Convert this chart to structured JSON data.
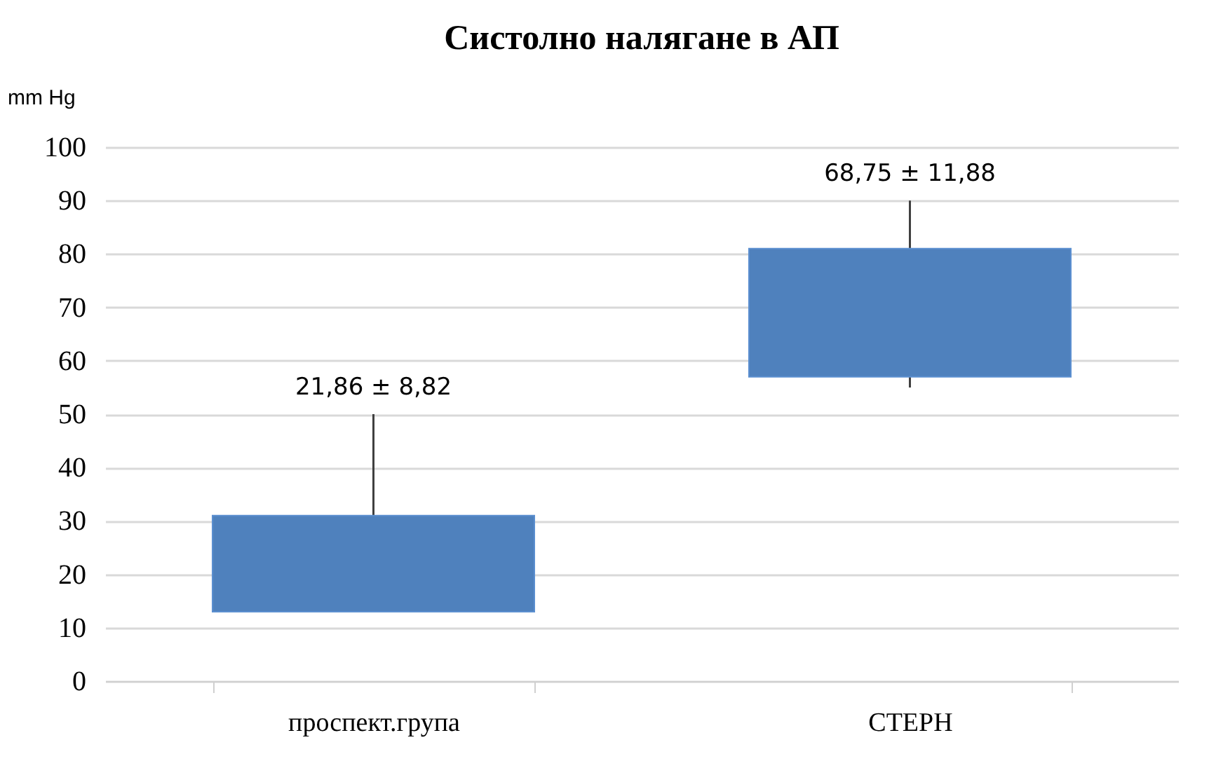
{
  "chart_data": {
    "type": "bar",
    "title": "Систолно налягане в АП",
    "ylabel": "mm Hg",
    "categories": [
      "проспект.група",
      "СТЕРН"
    ],
    "series": [
      {
        "color": "#4f81bd",
        "base": [
          13,
          57
        ],
        "values": [
          18,
          24
        ],
        "errors": [
          [
            13,
            50
          ],
          [
            55,
            90
          ]
        ]
      }
    ],
    "annotations": [
      "21,86 ± 8,82",
      "68,75 ± 11,88"
    ],
    "ylim": [
      0,
      100
    ],
    "yticks": [
      0,
      10,
      20,
      30,
      40,
      50,
      60,
      70,
      80,
      90,
      100
    ],
    "grid": "y"
  }
}
